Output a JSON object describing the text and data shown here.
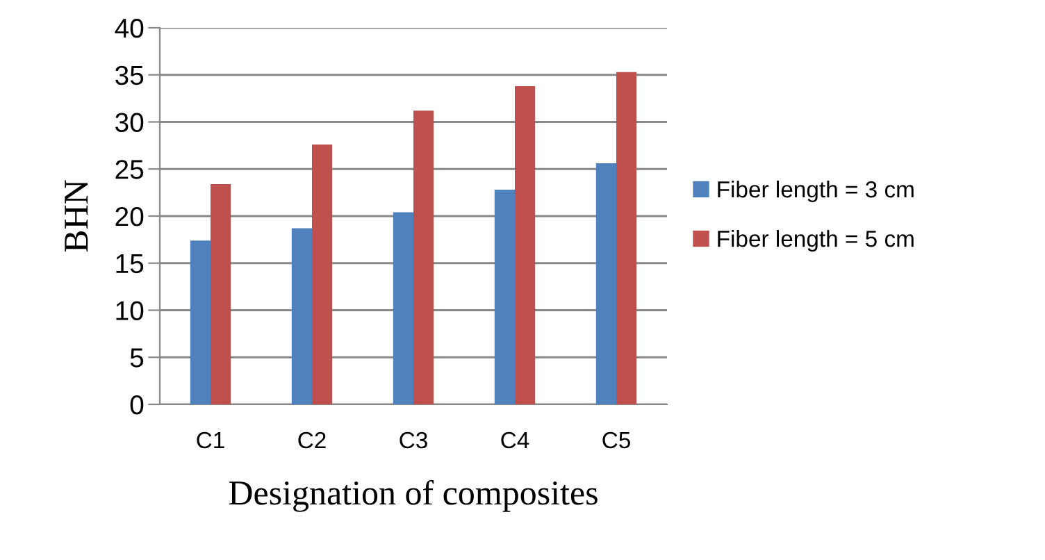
{
  "chart_data": {
    "type": "bar",
    "xlabel": "Designation of composites",
    "ylabel": "BHN",
    "categories": [
      "C1",
      "C2",
      "C3",
      "C4",
      "C5"
    ],
    "series": [
      {
        "name": "Fiber length = 3 cm",
        "color": "#4f81bd",
        "values": [
          17.4,
          18.7,
          20.4,
          22.8,
          25.6
        ]
      },
      {
        "name": "Fiber length = 5 cm",
        "color": "#c0504d",
        "values": [
          23.4,
          27.6,
          31.2,
          33.8,
          35.3
        ]
      }
    ],
    "ylim": [
      0,
      40
    ],
    "yticks": [
      0,
      5,
      10,
      15,
      20,
      25,
      30,
      35,
      40
    ],
    "grid": "y",
    "legend": "right"
  }
}
